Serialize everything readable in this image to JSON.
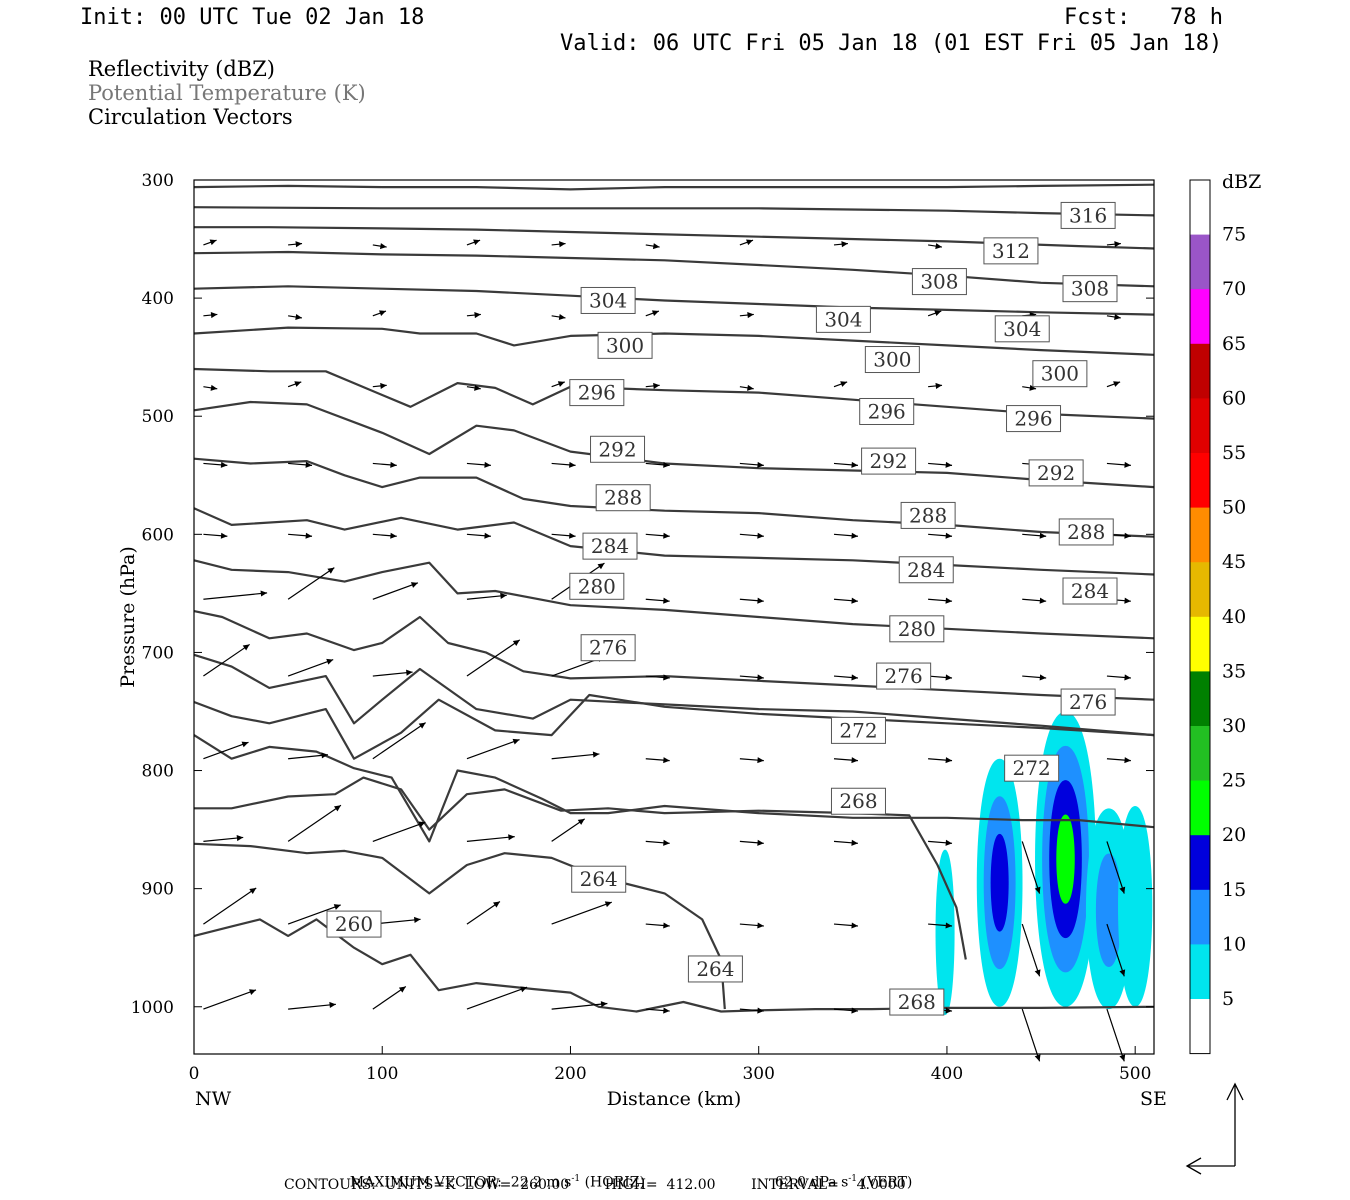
{
  "header": {
    "init": "Init: 00 UTC Tue 02 Jan 18",
    "fcst": "Fcst:   78 h",
    "valid": "Valid: 06 UTC Fri 05 Jan 18 (01 EST Fri 05 Jan 18)"
  },
  "legend": {
    "line1": "Reflectivity (dBZ)",
    "line2": "Potential Temperature (K)",
    "line3": "Circulation Vectors",
    "line2_color": "#777777"
  },
  "footer": {
    "max_vector_label": "MAXIMUM VECTOR:",
    "horiz": "22.2 m s",
    "horiz_sup": "-1",
    "horiz_tag": "(HORIZ)",
    "vert": "62.0 dPa s",
    "vert_sup": "-1",
    "vert_tag": "(VERT)",
    "contours": "CONTOURS:  UNITS=K  LOW=  260.00        HIGH=  412.00        INTERVAL=    4.0000"
  },
  "chart_data": {
    "type": "contour-cross-section",
    "xlabel": "Distance (km)",
    "ylabel": "Pressure (hPa)",
    "xlim": [
      0,
      510
    ],
    "ylim": [
      1040,
      300
    ],
    "xticks": [
      0,
      100,
      200,
      300,
      400,
      500
    ],
    "yticks": [
      300,
      400,
      500,
      600,
      700,
      800,
      900,
      1000
    ],
    "x_end_labels": [
      "NW",
      "SE"
    ],
    "colorbar": {
      "unit": "dBZ",
      "levels": [
        75,
        70,
        65,
        60,
        55,
        50,
        45,
        40,
        35,
        30,
        25,
        20,
        15,
        10,
        5
      ],
      "colors": [
        "#ffffff",
        "#9a55c8",
        "#ff00ff",
        "#c00000",
        "#e00000",
        "#ff0000",
        "#ff8c00",
        "#e6b800",
        "#ffff00",
        "#008000",
        "#22c022",
        "#00ff00",
        "#0000dd",
        "#1e90ff",
        "#00e5ee",
        "#ffffff"
      ]
    },
    "theta_lines": [
      {
        "x": [
          0,
          50,
          100,
          150,
          200,
          250,
          300,
          350,
          400,
          450,
          510
        ],
        "p": [
          306,
          305,
          306,
          306,
          308,
          306,
          306,
          306,
          306,
          305,
          304
        ]
      },
      {
        "x": [
          0,
          100,
          200,
          300,
          400,
          450,
          510
        ],
        "p": [
          323,
          324,
          324,
          324,
          326,
          328,
          330
        ]
      },
      {
        "x": [
          0,
          40,
          100,
          150,
          200,
          300,
          400,
          470,
          510
        ],
        "p": [
          340,
          340,
          341,
          342,
          344,
          348,
          352,
          356,
          358
        ]
      },
      {
        "x": [
          0,
          50,
          100,
          150,
          200,
          250,
          300,
          350,
          400,
          450,
          510
        ],
        "p": [
          362,
          361,
          363,
          364,
          366,
          368,
          372,
          376,
          381,
          387,
          390
        ]
      },
      {
        "x": [
          0,
          50,
          100,
          150,
          200,
          250,
          300,
          350,
          400,
          450,
          510
        ],
        "p": [
          392,
          390,
          392,
          394,
          398,
          402,
          405,
          408,
          410,
          412,
          414
        ]
      },
      {
        "x": [
          0,
          50,
          100,
          120,
          150,
          170,
          200,
          250,
          300,
          350,
          400,
          450,
          510
        ],
        "p": [
          430,
          425,
          426,
          430,
          430,
          440,
          432,
          430,
          432,
          436,
          440,
          444,
          448
        ]
      },
      {
        "x": [
          0,
          40,
          70,
          100,
          115,
          140,
          160,
          180,
          200,
          250,
          300,
          350,
          400,
          450,
          510
        ],
        "p": [
          460,
          462,
          462,
          482,
          492,
          472,
          476,
          490,
          475,
          478,
          480,
          486,
          492,
          498,
          502
        ]
      },
      {
        "x": [
          0,
          30,
          60,
          100,
          125,
          150,
          170,
          200,
          250,
          300,
          350,
          400,
          450,
          510
        ],
        "p": [
          495,
          488,
          490,
          514,
          532,
          508,
          512,
          530,
          540,
          544,
          546,
          548,
          554,
          560,
          564
        ]
      },
      {
        "x": [
          0,
          30,
          60,
          80,
          100,
          120,
          150,
          175,
          200,
          250,
          300,
          350,
          400,
          450,
          510
        ],
        "p": [
          536,
          540,
          538,
          550,
          560,
          552,
          552,
          570,
          576,
          580,
          582,
          588,
          592,
          598,
          602
        ]
      },
      {
        "x": [
          0,
          20,
          60,
          80,
          110,
          140,
          170,
          200,
          250,
          300,
          350,
          400,
          450,
          510
        ],
        "p": [
          578,
          592,
          588,
          596,
          586,
          596,
          590,
          610,
          618,
          620,
          622,
          626,
          630,
          634,
          636
        ]
      },
      {
        "x": [
          0,
          20,
          50,
          80,
          100,
          125,
          140,
          160,
          200,
          250,
          300,
          350,
          400,
          450,
          510
        ],
        "p": [
          622,
          630,
          632,
          640,
          632,
          624,
          650,
          648,
          660,
          664,
          670,
          676,
          680,
          684,
          688
        ]
      },
      {
        "x": [
          0,
          15,
          40,
          60,
          85,
          100,
          120,
          135,
          155,
          175,
          200,
          250,
          300,
          350,
          400,
          450,
          510
        ],
        "p": [
          665,
          670,
          688,
          684,
          698,
          692,
          670,
          692,
          700,
          716,
          722,
          720,
          724,
          728,
          732,
          736,
          740
        ]
      },
      {
        "x": [
          0,
          20,
          40,
          70,
          85,
          100,
          120,
          150,
          180,
          200,
          250,
          300,
          350,
          400,
          450,
          510
        ],
        "p": [
          702,
          712,
          730,
          720,
          760,
          740,
          714,
          748,
          756,
          740,
          744,
          748,
          750,
          756,
          762,
          770,
          778
        ]
      },
      {
        "x": [
          0,
          20,
          40,
          70,
          85,
          110,
          130,
          160,
          190,
          210,
          250,
          300,
          350,
          400,
          450,
          510
        ],
        "p": [
          742,
          754,
          760,
          748,
          790,
          768,
          740,
          766,
          770,
          736,
          746,
          752,
          756,
          760,
          764,
          770,
          784
        ]
      },
      {
        "x": [
          0,
          20,
          40,
          65,
          85,
          105,
          125,
          140,
          160,
          185,
          200,
          220,
          250,
          300,
          350,
          400,
          440,
          470,
          510
        ],
        "p": [
          770,
          790,
          780,
          784,
          798,
          806,
          860,
          800,
          806,
          824,
          836,
          836,
          830,
          836,
          840,
          840,
          842,
          842,
          848
        ]
      },
      {
        "x": [
          0,
          20,
          50,
          75,
          90,
          110,
          125,
          145,
          165,
          195,
          220,
          250,
          300,
          350,
          380,
          395,
          405,
          410
        ],
        "p": [
          832,
          832,
          822,
          820,
          806,
          816,
          850,
          820,
          816,
          834,
          832,
          836,
          834,
          836,
          838,
          880,
          916,
          960
        ]
      },
      {
        "x": [
          0,
          30,
          60,
          80,
          100,
          125,
          145,
          165,
          190,
          215,
          250,
          270,
          280,
          282
        ],
        "p": [
          862,
          864,
          870,
          868,
          874,
          904,
          880,
          870,
          874,
          890,
          904,
          926,
          960,
          1002
        ]
      },
      {
        "x": [
          0,
          20,
          35,
          50,
          65,
          85,
          100,
          115,
          130,
          150,
          180,
          200,
          215,
          235,
          260,
          280,
          300,
          330,
          360,
          400,
          450,
          510
        ],
        "p": [
          940,
          932,
          926,
          940,
          926,
          950,
          964,
          956,
          986,
          980,
          985,
          988,
          1000,
          1004,
          996,
          1004,
          1003,
          1002,
          1002,
          1001,
          1001,
          1000
        ]
      }
    ],
    "theta_labels": [
      {
        "text": "316",
        "x": 475,
        "p": 330
      },
      {
        "text": "312",
        "x": 434,
        "p": 360
      },
      {
        "text": "308",
        "x": 396,
        "p": 386
      },
      {
        "text": "308",
        "x": 476,
        "p": 392
      },
      {
        "text": "304",
        "x": 220,
        "p": 402
      },
      {
        "text": "304",
        "x": 345,
        "p": 418
      },
      {
        "text": "304",
        "x": 440,
        "p": 426
      },
      {
        "text": "300",
        "x": 229,
        "p": 440
      },
      {
        "text": "300",
        "x": 371,
        "p": 452
      },
      {
        "text": "300",
        "x": 460,
        "p": 464
      },
      {
        "text": "296",
        "x": 214,
        "p": 480
      },
      {
        "text": "296",
        "x": 368,
        "p": 496
      },
      {
        "text": "296",
        "x": 446,
        "p": 502
      },
      {
        "text": "292",
        "x": 225,
        "p": 528
      },
      {
        "text": "292",
        "x": 369,
        "p": 538
      },
      {
        "text": "292",
        "x": 458,
        "p": 548
      },
      {
        "text": "288",
        "x": 228,
        "p": 569
      },
      {
        "text": "288",
        "x": 390,
        "p": 584
      },
      {
        "text": "288",
        "x": 474,
        "p": 598
      },
      {
        "text": "284",
        "x": 221,
        "p": 610
      },
      {
        "text": "284",
        "x": 389,
        "p": 630
      },
      {
        "text": "284",
        "x": 476,
        "p": 648
      },
      {
        "text": "280",
        "x": 214,
        "p": 644
      },
      {
        "text": "280",
        "x": 384,
        "p": 680
      },
      {
        "text": "276",
        "x": 220,
        "p": 696
      },
      {
        "text": "276",
        "x": 377,
        "p": 720
      },
      {
        "text": "276",
        "x": 475,
        "p": 742
      },
      {
        "text": "272",
        "x": 353,
        "p": 766
      },
      {
        "text": "272",
        "x": 445,
        "p": 798
      },
      {
        "text": "268",
        "x": 353,
        "p": 826
      },
      {
        "text": "268",
        "x": 384,
        "p": 996
      },
      {
        "text": "264",
        "x": 215,
        "p": 892
      },
      {
        "text": "264",
        "x": 277,
        "p": 968
      },
      {
        "text": "260",
        "x": 85,
        "p": 930
      }
    ],
    "refl_cells": [
      {
        "x": 399,
        "p": 937,
        "rx": 5,
        "rtop": 70,
        "rbot": 70,
        "levels": [
          5
        ]
      },
      {
        "x": 428,
        "p": 895,
        "rx": 12,
        "rtop": 105,
        "rbot": 105,
        "levels": [
          5,
          10,
          15
        ]
      },
      {
        "x": 463,
        "p": 875,
        "rx": 16,
        "rtop": 125,
        "rbot": 125,
        "levels": [
          5,
          10,
          15,
          20
        ]
      },
      {
        "x": 486,
        "p": 920,
        "rx": 12,
        "rtop": 88,
        "rbot": 82,
        "levels": [
          5,
          10
        ]
      },
      {
        "x": 500,
        "p": 915,
        "rx": 9,
        "rtop": 85,
        "rbot": 85,
        "levels": [
          5
        ]
      }
    ]
  }
}
